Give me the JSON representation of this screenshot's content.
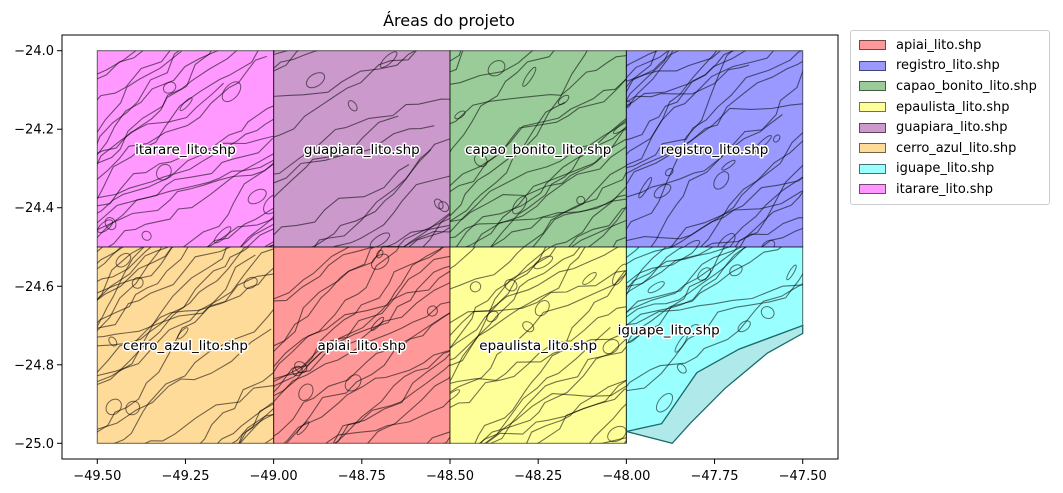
{
  "chart_data": {
    "type": "map",
    "title": "Áreas do projeto",
    "xlim": [
      -49.6,
      -47.4
    ],
    "ylim": [
      -25.04,
      -23.96
    ],
    "x_ticks": [
      -49.5,
      -49.25,
      -49.0,
      -48.75,
      -48.5,
      -48.25,
      -48.0,
      -47.75,
      -47.5
    ],
    "x_tick_labels": [
      "−49.50",
      "−49.25",
      "−49.00",
      "−48.75",
      "−48.50",
      "−48.25",
      "−48.00",
      "−47.75",
      "−47.50"
    ],
    "y_ticks": [
      -24.0,
      -24.2,
      -24.4,
      -24.6,
      -24.8,
      -25.0
    ],
    "y_tick_labels": [
      "−24.0",
      "−24.2",
      "−24.4",
      "−24.6",
      "−24.8",
      "−25.0"
    ],
    "grid": false,
    "legend_position": "outside-right",
    "areas": [
      {
        "name": "itarare_lito.shp",
        "color": "#ff00ff",
        "x": [
          -49.5,
          -49.0
        ],
        "y": [
          -24.5,
          -24.0
        ],
        "label_pos": [
          -49.25,
          -24.25
        ]
      },
      {
        "name": "guapiara_lito.shp",
        "color": "#800080",
        "x": [
          -49.0,
          -48.5
        ],
        "y": [
          -24.5,
          -24.0
        ],
        "label_pos": [
          -48.75,
          -24.25
        ]
      },
      {
        "name": "capao_bonito_lito.shp",
        "color": "#008000",
        "x": [
          -48.5,
          -48.0
        ],
        "y": [
          -24.5,
          -24.0
        ],
        "label_pos": [
          -48.25,
          -24.25
        ]
      },
      {
        "name": "registro_lito.shp",
        "color": "#0000ff",
        "x": [
          -48.0,
          -47.5
        ],
        "y": [
          -24.5,
          -24.0
        ],
        "label_pos": [
          -47.75,
          -24.25
        ]
      },
      {
        "name": "cerro_azul_lito.shp",
        "color": "#ffa500",
        "x": [
          -49.5,
          -49.0
        ],
        "y": [
          -25.0,
          -24.5
        ],
        "label_pos": [
          -49.25,
          -24.75
        ]
      },
      {
        "name": "apiai_lito.shp",
        "color": "#ff0000",
        "x": [
          -49.0,
          -48.5
        ],
        "y": [
          -25.0,
          -24.5
        ],
        "label_pos": [
          -48.75,
          -24.75
        ]
      },
      {
        "name": "epaulista_lito.shp",
        "color": "#ffff00",
        "x": [
          -48.5,
          -48.0
        ],
        "y": [
          -25.0,
          -24.5
        ],
        "label_pos": [
          -48.25,
          -24.75
        ]
      },
      {
        "name": "iguape_lito.shp",
        "color": "#00ffff",
        "x": [
          -48.0,
          -47.5
        ],
        "y": [
          -25.0,
          -24.5
        ],
        "label_pos": [
          -47.88,
          -24.71
        ],
        "coast": [
          [
            -48.0,
            -24.97
          ],
          [
            -47.9,
            -24.95
          ],
          [
            -47.8,
            -24.82
          ],
          [
            -47.68,
            -24.76
          ],
          [
            -47.5,
            -24.7
          ],
          [
            -47.5,
            -24.72
          ],
          [
            -47.6,
            -24.77
          ],
          [
            -47.72,
            -24.86
          ],
          [
            -47.82,
            -24.95
          ],
          [
            -47.87,
            -25.0
          ]
        ]
      }
    ],
    "legend": [
      {
        "label": "apiai_lito.shp",
        "color": "#ff0000"
      },
      {
        "label": "registro_lito.shp",
        "color": "#0000ff"
      },
      {
        "label": "capao_bonito_lito.shp",
        "color": "#008000"
      },
      {
        "label": "epaulista_lito.shp",
        "color": "#ffff00"
      },
      {
        "label": "guapiara_lito.shp",
        "color": "#800080"
      },
      {
        "label": "cerro_azul_lito.shp",
        "color": "#ffa500"
      },
      {
        "label": "iguape_lito.shp",
        "color": "#00ffff"
      },
      {
        "label": "itarare_lito.shp",
        "color": "#ff00ff"
      }
    ]
  }
}
